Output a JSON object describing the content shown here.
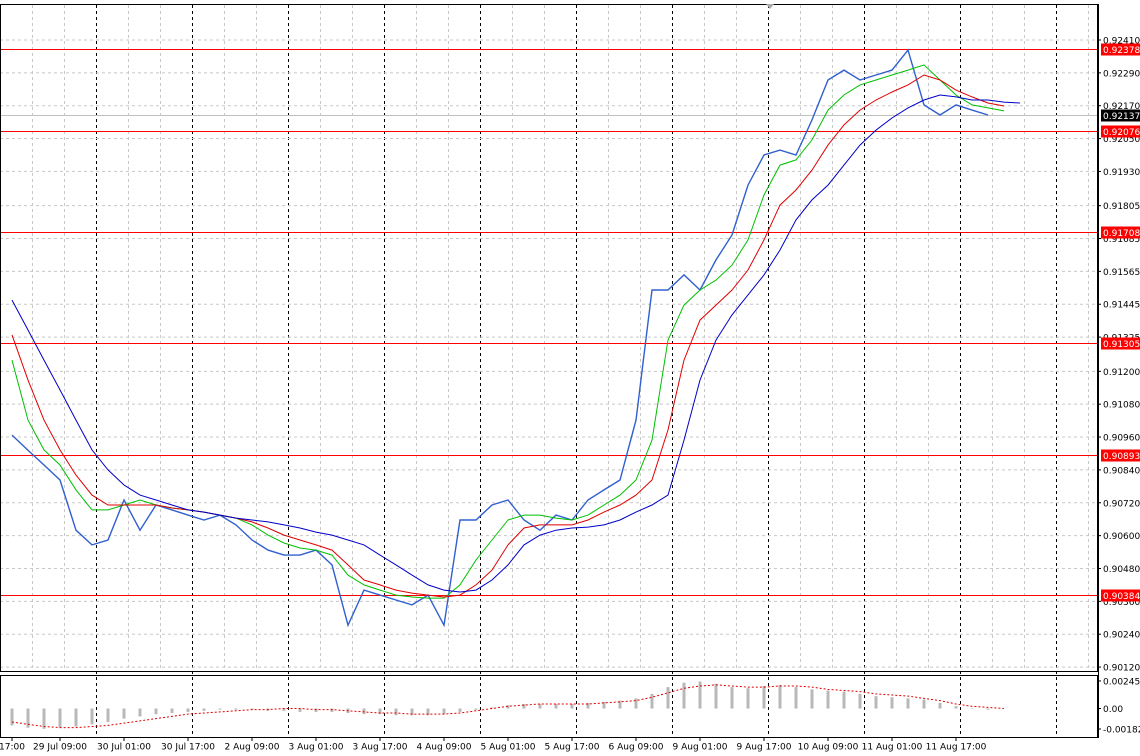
{
  "chart_data": [
    {
      "type": "line",
      "categories": [
        "17:00",
        null,
        null,
        "29 Jul 09:00",
        null,
        null,
        null,
        "30 Jul 01:00",
        null,
        null,
        null,
        "30 Jul 17:00",
        null,
        null,
        null,
        "2 Aug 09:00",
        null,
        null,
        null,
        "3 Aug 01:00",
        null,
        null,
        null,
        "3 Aug 17:00",
        null,
        null,
        null,
        "4 Aug 09:00",
        null,
        null,
        null,
        "5 Aug 01:00",
        null,
        null,
        null,
        "5 Aug 17:00",
        null,
        null,
        null,
        "6 Aug 09:00",
        null,
        null,
        null,
        "9 Aug 01:00",
        null,
        null,
        null,
        "9 Aug 17:00",
        null,
        null,
        null,
        "10 Aug 09:00",
        null,
        null,
        null,
        "11 Aug 01:00",
        null,
        null,
        null,
        "11 Aug 17:00",
        null,
        null,
        null,
        null
      ],
      "ylim": [
        0.90102,
        0.92556
      ],
      "yticks": [
        {
          "value": 0.9241,
          "label": "0.92410"
        },
        {
          "value": 0.9229,
          "label": "0.92290"
        },
        {
          "value": 0.9217,
          "label": "0.92170"
        },
        {
          "value": 0.9205,
          "label": "0.92050"
        },
        {
          "value": 0.9193,
          "label": "0.91930"
        },
        0.91805,
        0.91685,
        0.91565,
        0.91445,
        0.91325,
        {
          "value": 0.912,
          "label": "0.91200"
        },
        {
          "value": 0.9108,
          "label": "0.91080"
        },
        {
          "value": 0.9096,
          "label": "0.90960"
        },
        {
          "value": 0.9084,
          "label": "0.90840"
        },
        {
          "value": 0.9072,
          "label": "0.90720"
        },
        {
          "value": 0.906,
          "label": "0.90600"
        },
        {
          "value": 0.9048,
          "label": "0.90480"
        },
        {
          "value": 0.9036,
          "label": "0.90360"
        },
        {
          "value": 0.9024,
          "label": "0.90240"
        },
        {
          "value": 0.9012,
          "label": "0.90120"
        }
      ],
      "grid": true,
      "levels": [
        0.92378,
        0.92076,
        0.91708,
        0.91305,
        0.90893,
        0.90384
      ],
      "level_color": "#ff0000",
      "current": 0.92137,
      "series": [
        {
          "color": "#3060d0",
          "values": [
            0.90967,
            0.90912,
            0.90858,
            0.90803,
            0.9062,
            0.90566,
            0.90584,
            0.9073,
            0.9062,
            0.90712,
            0.90694,
            0.90675,
            0.90657,
            0.90675,
            0.90639,
            0.90584,
            0.90547,
            0.90529,
            0.90529,
            0.90547,
            0.90493,
            0.90273,
            0.90401,
            0.90383,
            0.90365,
            0.90347,
            0.90383,
            0.90273,
            0.90657,
            0.90657,
            0.90712,
            0.9073,
            0.90657,
            0.9062,
            0.90675,
            0.90657,
            0.9073,
            0.90767,
            0.90803,
            0.91022,
            0.91497,
            0.91497,
            0.91552,
            0.91497,
            0.91607,
            0.91698,
            0.9188,
            0.9199,
            0.92008,
            0.9199,
            0.92118,
            0.92264,
            0.923,
            0.92264,
            0.92282,
            0.923,
            0.92373,
            0.92173,
            0.92136,
            0.92173,
            0.92154,
            0.92136,
            null,
            null
          ]
        },
        {
          "color": "#00c000",
          "values": [
            0.91241,
            0.91022,
            0.90913,
            0.90858,
            0.90767,
            0.90694,
            0.90694,
            0.90712,
            0.9073,
            0.90712,
            0.90701,
            0.90694,
            0.90686,
            0.90675,
            0.90664,
            0.90639,
            0.90602,
            0.90573,
            0.90555,
            0.90547,
            0.90529,
            0.90456,
            0.9042,
            0.90401,
            0.90383,
            0.90376,
            0.90372,
            0.90372,
            0.9042,
            0.90511,
            0.90584,
            0.90657,
            0.90675,
            0.90675,
            0.90664,
            0.90657,
            0.90675,
            0.90712,
            0.90748,
            0.90803,
            0.90949,
            0.91314,
            0.91442,
            0.91497,
            0.91533,
            0.91588,
            0.9168,
            0.91844,
            0.91953,
            0.91972,
            0.92045,
            0.92154,
            0.92209,
            0.92246,
            0.92264,
            0.92282,
            0.923,
            0.92319,
            0.92264,
            0.92209,
            0.92173,
            0.92162,
            0.92151,
            null
          ]
        },
        {
          "color": "#e00000",
          "values": [
            0.91333,
            0.91168,
            0.91022,
            0.90913,
            0.90821,
            0.90748,
            0.90712,
            0.90712,
            0.90712,
            0.90712,
            0.90701,
            0.90694,
            0.90686,
            0.90675,
            0.90664,
            0.9065,
            0.90628,
            0.90602,
            0.90584,
            0.90566,
            0.90547,
            0.90493,
            0.90438,
            0.9042,
            0.90401,
            0.9039,
            0.90383,
            0.90376,
            0.90383,
            0.9042,
            0.90474,
            0.90566,
            0.90628,
            0.90639,
            0.90639,
            0.90639,
            0.90657,
            0.90686,
            0.90712,
            0.90748,
            0.90803,
            0.90986,
            0.91241,
            0.91387,
            0.91442,
            0.91497,
            0.9157,
            0.9168,
            0.91807,
            0.91862,
            0.91935,
            0.92026,
            0.921,
            0.92154,
            0.92191,
            0.9222,
            0.92246,
            0.92282,
            0.92264,
            0.92227,
            0.92202,
            0.9218,
            0.92169,
            null
          ]
        },
        {
          "color": "#0000c8",
          "values": [
            0.9146,
            0.91351,
            0.91241,
            0.91132,
            0.91022,
            0.90913,
            0.9084,
            0.90785,
            0.90748,
            0.9073,
            0.90712,
            0.90694,
            0.90686,
            0.90675,
            0.90664,
            0.90657,
            0.9065,
            0.90639,
            0.90628,
            0.90613,
            0.90602,
            0.90584,
            0.90566,
            0.90529,
            0.90493,
            0.90456,
            0.9042,
            0.90401,
            0.90394,
            0.90401,
            0.90438,
            0.90493,
            0.90566,
            0.90602,
            0.9062,
            0.90628,
            0.90631,
            0.90639,
            0.90657,
            0.90686,
            0.90712,
            0.90748,
            0.90949,
            0.91168,
            0.91314,
            0.91406,
            0.91479,
            0.91552,
            0.91643,
            0.91753,
            0.91826,
            0.9188,
            0.91953,
            0.92026,
            0.92081,
            0.92125,
            0.92162,
            0.92191,
            0.92209,
            0.92202,
            0.92191,
            0.92191,
            0.92183,
            0.9218
          ]
        }
      ]
    },
    {
      "type": "bar",
      "ylim": [
        -0.00262,
        0.00289
      ],
      "yticks": [
        0.00245,
        {
          "value": 0,
          "label": "0.00"
        },
        -0.00182
      ],
      "series": [
        {
          "type": "bar",
          "color": "#b8b8b8",
          "values": [
            -0.0015,
            -0.0017,
            -0.0018,
            -0.0017,
            -0.0016,
            -0.0014,
            -0.0012,
            -0.0009,
            -0.0007,
            -0.0005,
            -0.0004,
            -0.0003,
            -0.0002,
            -0.0001,
            -0.0001,
            -0.0001,
            -0.0002,
            -0.0002,
            -0.0003,
            -0.0003,
            -0.0003,
            -0.0004,
            -0.0005,
            -0.0005,
            -0.0006,
            -0.0006,
            -0.0006,
            -0.0005,
            -0.0003,
            -0.0001,
            0.0001,
            0.0003,
            0.0004,
            0.0004,
            0.0004,
            0.0004,
            0.0005,
            0.0006,
            0.0007,
            0.0009,
            0.0013,
            0.0019,
            0.0023,
            0.0024,
            0.0022,
            0.0019,
            0.0018,
            0.002,
            0.0021,
            0.0019,
            0.0017,
            0.0016,
            0.0015,
            0.0013,
            0.0011,
            0.001,
            0.0009,
            0.0008,
            0.0005,
            0.0002,
            0,
            -0.0001,
            null,
            null
          ]
        },
        {
          "type": "line",
          "color": "#e00000",
          "values": [
            -0.0012,
            -0.0014,
            -0.0016,
            -0.0017,
            -0.0017,
            -0.0016,
            -0.0015,
            -0.0013,
            -0.0011,
            -0.0009,
            -0.0007,
            -0.0005,
            -0.0004,
            -0.0003,
            -0.0002,
            -0.0001,
            -0.0001,
            0,
            0,
            -0.0001,
            -0.0001,
            -0.0002,
            -0.0003,
            -0.0004,
            -0.0004,
            -0.0005,
            -0.0005,
            -0.0005,
            -0.0004,
            -0.0002,
            0,
            0.0002,
            0.0003,
            0.0004,
            0.0004,
            0.0004,
            0.0004,
            0.0005,
            0.0006,
            0.0007,
            0.001,
            0.0014,
            0.0018,
            0.002,
            0.0021,
            0.002,
            0.0019,
            0.0019,
            0.002,
            0.002,
            0.0019,
            0.0017,
            0.0016,
            0.0015,
            0.0013,
            0.0012,
            0.0011,
            0.0009,
            0.0007,
            0.0004,
            0.0002,
            0.0001,
            0,
            null
          ]
        }
      ]
    }
  ]
}
